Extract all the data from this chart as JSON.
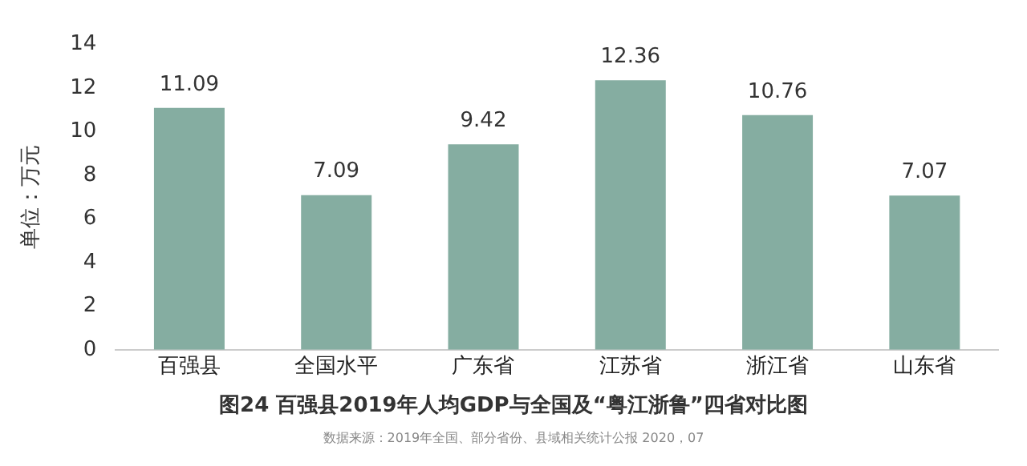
{
  "chart_data": {
    "type": "bar",
    "title": "图24 百强县2019年人均GDP与全国及“粤江浙鲁”四省对比图",
    "ylabel": "单位：万元",
    "categories": [
      "百强县",
      "全国水平",
      "广东省",
      "江苏省",
      "浙江省",
      "山东省"
    ],
    "values": [
      11.09,
      7.09,
      9.42,
      12.36,
      10.76,
      7.07
    ],
    "color": "#85ada1",
    "ylim": [
      0,
      14
    ],
    "yticks": [
      0,
      2,
      4,
      6,
      8,
      10,
      12,
      14
    ],
    "grid": false,
    "legend": false,
    "data_labels": true,
    "annotations": [
      "数据来源：2019年全国、部分省份、县域相关统计公报 2020，07"
    ]
  }
}
